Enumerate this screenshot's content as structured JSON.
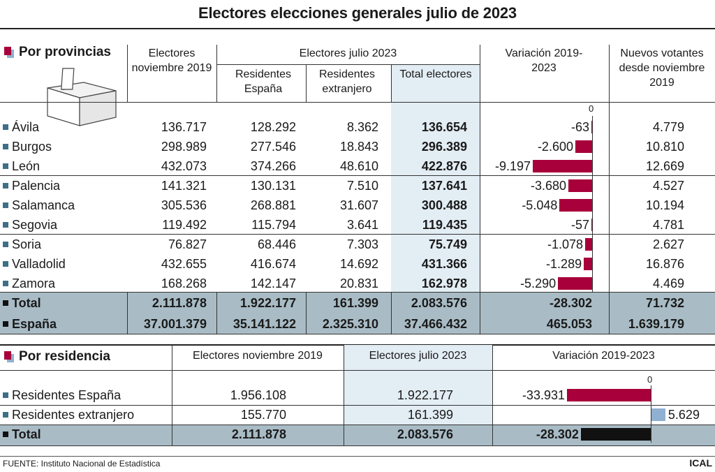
{
  "title": "Electores elecciones generales julio de 2023",
  "provinces": {
    "section_title": "Por provincias",
    "headers": {
      "nov2019": "Electores noviembre 2019",
      "jul2023": "Electores julio 2023",
      "residentes": "Residentes España",
      "extranjero": "Residentes extranjero",
      "total": "Total electores",
      "variacion": "Variación 2019-2023",
      "nuevos": "Nuevos votantes desde noviembre 2019",
      "zero": "0"
    },
    "rows": [
      {
        "name": "Ávila",
        "nov2019": "136.717",
        "residentes": "128.292",
        "extranjero": "8.362",
        "total": "136.654",
        "variacion": "-63",
        "variacion_value": -63,
        "nuevos": "4.779"
      },
      {
        "name": "Burgos",
        "nov2019": "298.989",
        "residentes": "277.546",
        "extranjero": "18.843",
        "total": "296.389",
        "variacion": "-2.600",
        "variacion_value": -2600,
        "nuevos": "10.810"
      },
      {
        "name": "León",
        "nov2019": "432.073",
        "residentes": "374.266",
        "extranjero": "48.610",
        "total": "422.876",
        "variacion": "-9.197",
        "variacion_value": -9197,
        "nuevos": "12.669"
      },
      {
        "name": "Palencia",
        "nov2019": "141.321",
        "residentes": "130.131",
        "extranjero": "7.510",
        "total": "137.641",
        "variacion": "-3.680",
        "variacion_value": -3680,
        "nuevos": "4.527"
      },
      {
        "name": "Salamanca",
        "nov2019": "305.536",
        "residentes": "268.881",
        "extranjero": "31.607",
        "total": "300.488",
        "variacion": "-5.048",
        "variacion_value": -5048,
        "nuevos": "10.194"
      },
      {
        "name": "Segovia",
        "nov2019": "119.492",
        "residentes": "115.794",
        "extranjero": "3.641",
        "total": "119.435",
        "variacion": "-57",
        "variacion_value": -57,
        "nuevos": "4.781"
      },
      {
        "name": "Soria",
        "nov2019": "76.827",
        "residentes": "68.446",
        "extranjero": "7.303",
        "total": "75.749",
        "variacion": "-1.078",
        "variacion_value": -1078,
        "nuevos": "2.627"
      },
      {
        "name": "Valladolid",
        "nov2019": "432.655",
        "residentes": "416.674",
        "extranjero": "14.692",
        "total": "431.366",
        "variacion": "-1.289",
        "variacion_value": -1289,
        "nuevos": "16.876"
      },
      {
        "name": "Zamora",
        "nov2019": "168.268",
        "residentes": "142.147",
        "extranjero": "20.831",
        "total": "162.978",
        "variacion": "-5.290",
        "variacion_value": -5290,
        "nuevos": "4.469"
      }
    ],
    "total_row": {
      "name": "Total",
      "nov2019": "2.111.878",
      "residentes": "1.922.177",
      "extranjero": "161.399",
      "total": "2.083.576",
      "variacion": "-28.302",
      "nuevos": "71.732"
    },
    "spain_row": {
      "name": "España",
      "nov2019": "37.001.379",
      "residentes": "35.141.122",
      "extranjero": "2.325.310",
      "total": "37.466.432",
      "variacion": "465.053",
      "nuevos": "1.639.179"
    }
  },
  "residence": {
    "section_title": "Por residencia",
    "headers": {
      "nov2019": "Electores noviembre 2019",
      "jul2023": "Electores julio 2023",
      "variacion": "Variación 2019-2023",
      "zero": "0"
    },
    "rows": [
      {
        "name": "Residentes España",
        "nov2019": "1.956.108",
        "jul2023": "1.922.177",
        "variacion": "-33.931",
        "variacion_value": -33931
      },
      {
        "name": "Residentes extranjero",
        "nov2019": "155.770",
        "jul2023": "161.399",
        "variacion": "5.629",
        "variacion_value": 5629
      }
    ],
    "total_row": {
      "name": "Total",
      "nov2019": "2.111.878",
      "jul2023": "2.083.576",
      "variacion": "-28.302",
      "variacion_value": -28302
    }
  },
  "colors": {
    "negative_bar": "#a8003a",
    "positive_bar": "#8fb0d0",
    "total_bar": "#111111",
    "highlight_column": "#e3edf4",
    "total_band": "#a9bcc6",
    "bullet": "#3f6f86"
  },
  "footer": {
    "source": "FUENTE: Instituto Nacional de Estadística",
    "credit": "ICAL"
  }
}
